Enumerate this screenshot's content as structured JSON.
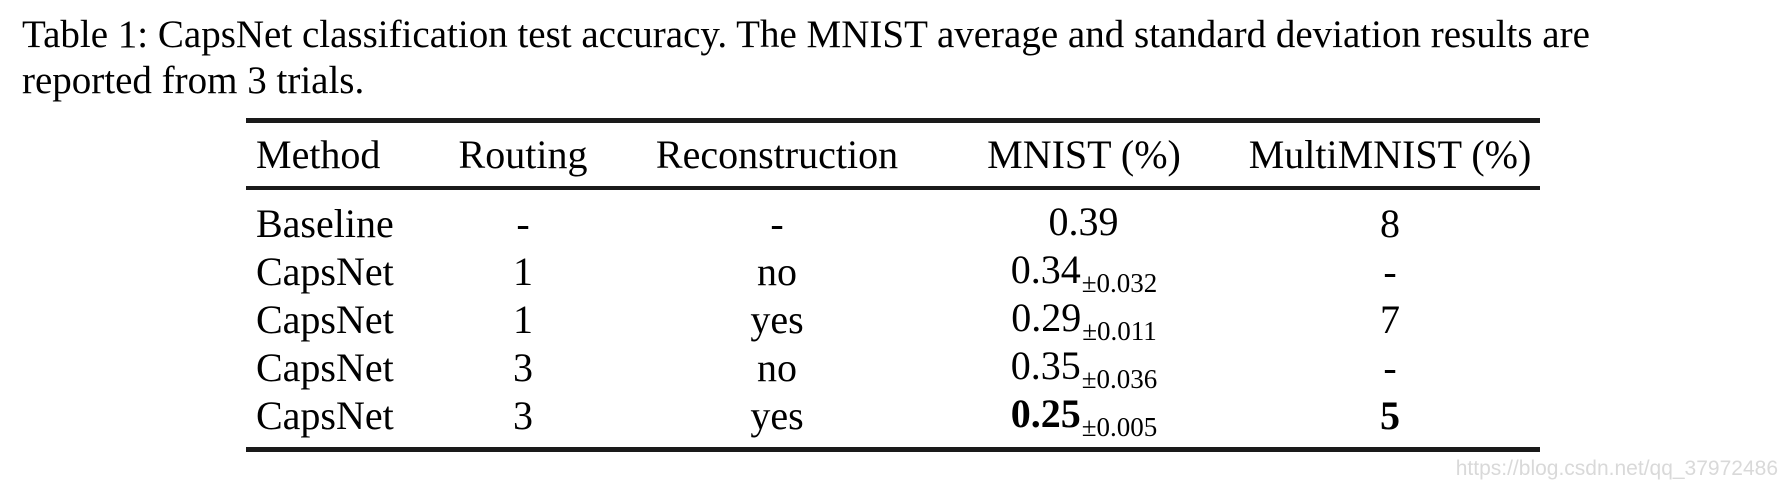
{
  "caption": {
    "line1": "Table 1: CapsNet classification test accuracy. The MNIST average and standard deviation results are",
    "line2": "reported from 3 trials."
  },
  "table": {
    "headers": [
      "Method",
      "Routing",
      "Reconstruction",
      "MNIST (%)",
      "MultiMNIST (%)"
    ],
    "rows": [
      {
        "method": "Baseline",
        "routing": "-",
        "reconstruction": "-",
        "mnist_main": "0.39",
        "mnist_sub": "",
        "multimnist": "8"
      },
      {
        "method": "CapsNet",
        "routing": "1",
        "reconstruction": "no",
        "mnist_main": "0.34",
        "mnist_sub": "±0.032",
        "multimnist": "-"
      },
      {
        "method": "CapsNet",
        "routing": "1",
        "reconstruction": "yes",
        "mnist_main": "0.29",
        "mnist_sub": "±0.011",
        "multimnist": "7"
      },
      {
        "method": "CapsNet",
        "routing": "3",
        "reconstruction": "no",
        "mnist_main": "0.35",
        "mnist_sub": "±0.036",
        "multimnist": "-"
      },
      {
        "method": "CapsNet",
        "routing": "3",
        "reconstruction": "yes",
        "mnist_main": "0.25",
        "mnist_sub": "±0.005",
        "multimnist": "5"
      }
    ]
  },
  "watermark": {
    "url_text": "https://blog.csdn.net/qq_37972486"
  },
  "colors": {
    "text": "#000000",
    "rule": "#1a1a1a",
    "watermark": "#d9d9d9",
    "background": "#ffffff"
  }
}
